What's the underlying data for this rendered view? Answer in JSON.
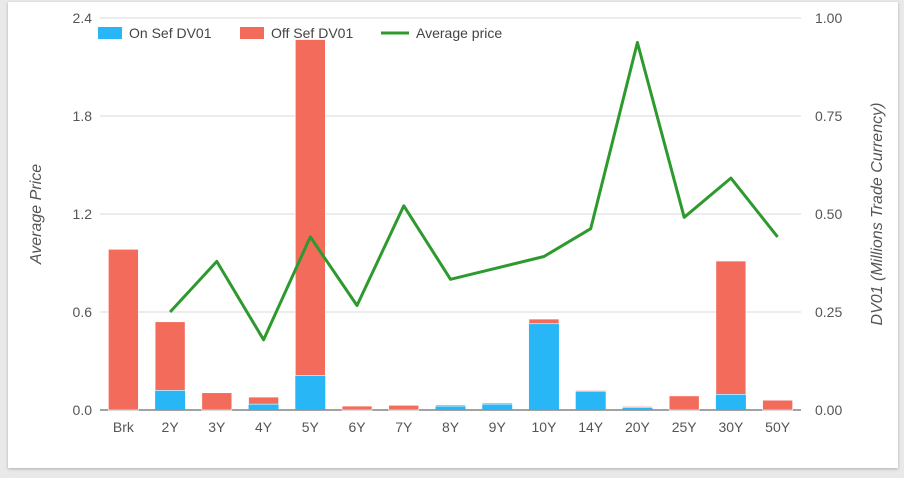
{
  "chart_data": {
    "type": "bar",
    "stacked": true,
    "categories": [
      "Brk",
      "2Y",
      "3Y",
      "4Y",
      "5Y",
      "6Y",
      "7Y",
      "8Y",
      "9Y",
      "10Y",
      "14Y",
      "20Y",
      "25Y",
      "30Y",
      "50Y"
    ],
    "series": [
      {
        "name": "On Sef DV01",
        "axis": "right",
        "color": "#29b6f6",
        "values": [
          0.0,
          0.05,
          0.0,
          0.015,
          0.088,
          0.0,
          0.0,
          0.01,
          0.015,
          0.22,
          0.048,
          0.006,
          0.0,
          0.04,
          0.0
        ]
      },
      {
        "name": "Off Sef DV01",
        "axis": "right",
        "color": "#f26b5b",
        "values": [
          0.41,
          0.175,
          0.044,
          0.018,
          0.857,
          0.01,
          0.012,
          0.003,
          0.003,
          0.012,
          0.002,
          0.003,
          0.036,
          0.34,
          0.025
        ]
      },
      {
        "name": "Average price",
        "axis": "left",
        "color": "#2e9a2e",
        "type": "line",
        "values": [
          null,
          0.6,
          0.91,
          0.43,
          1.06,
          0.64,
          1.25,
          0.8,
          0.87,
          0.94,
          1.11,
          2.25,
          1.18,
          1.42,
          1.06
        ]
      }
    ],
    "ylabel": "Average Price",
    "y2label": "DV01 (Millions Trade Currency)",
    "ylim": [
      0,
      2.4
    ],
    "y2lim": [
      0,
      1.0
    ],
    "yticks": [
      "0.0",
      "0.6",
      "1.2",
      "1.8",
      "2.4"
    ],
    "y2ticks": [
      "0.00",
      "0.25",
      "0.50",
      "0.75",
      "1.00"
    ],
    "grid": true,
    "legend_position": "top-left"
  }
}
